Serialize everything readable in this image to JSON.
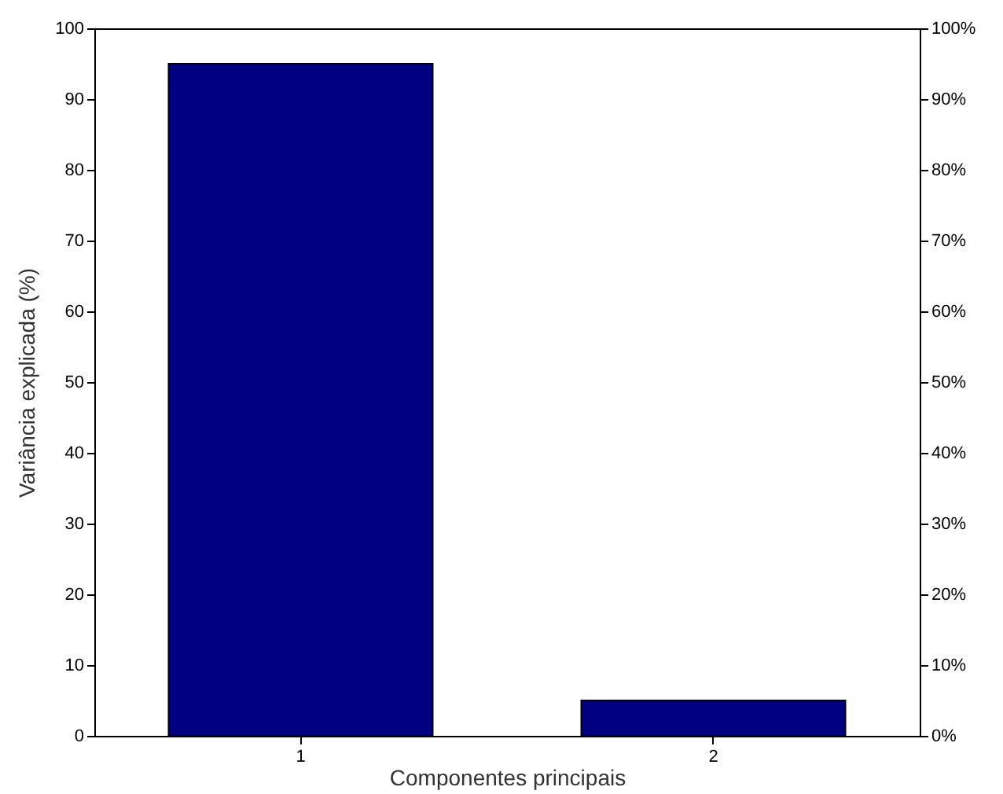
{
  "chart_data": {
    "type": "bar",
    "ylabel": "Variância explicada (%)",
    "xlabel": "Componentes principais",
    "categories": [
      "1",
      "2"
    ],
    "series": [
      {
        "color": "#000080",
        "values": [
          95,
          5
        ]
      }
    ],
    "ylim": [
      0,
      100
    ],
    "yticks": [
      0,
      10,
      20,
      30,
      40,
      50,
      60,
      70,
      80,
      90,
      100
    ],
    "y2lim": [
      0,
      100
    ],
    "y2ticks": [
      {
        "value": 0,
        "label": "0%"
      },
      {
        "value": 10,
        "label": "10%"
      },
      {
        "value": 20,
        "label": "20%"
      },
      {
        "value": 30,
        "label": "30%"
      },
      {
        "value": 40,
        "label": "40%"
      },
      {
        "value": 50,
        "label": "50%"
      },
      {
        "value": 60,
        "label": "60%"
      },
      {
        "value": 70,
        "label": "70%"
      },
      {
        "value": 80,
        "label": "80%"
      },
      {
        "value": 90,
        "label": "90%"
      },
      {
        "value": 100,
        "label": "100%"
      }
    ]
  }
}
